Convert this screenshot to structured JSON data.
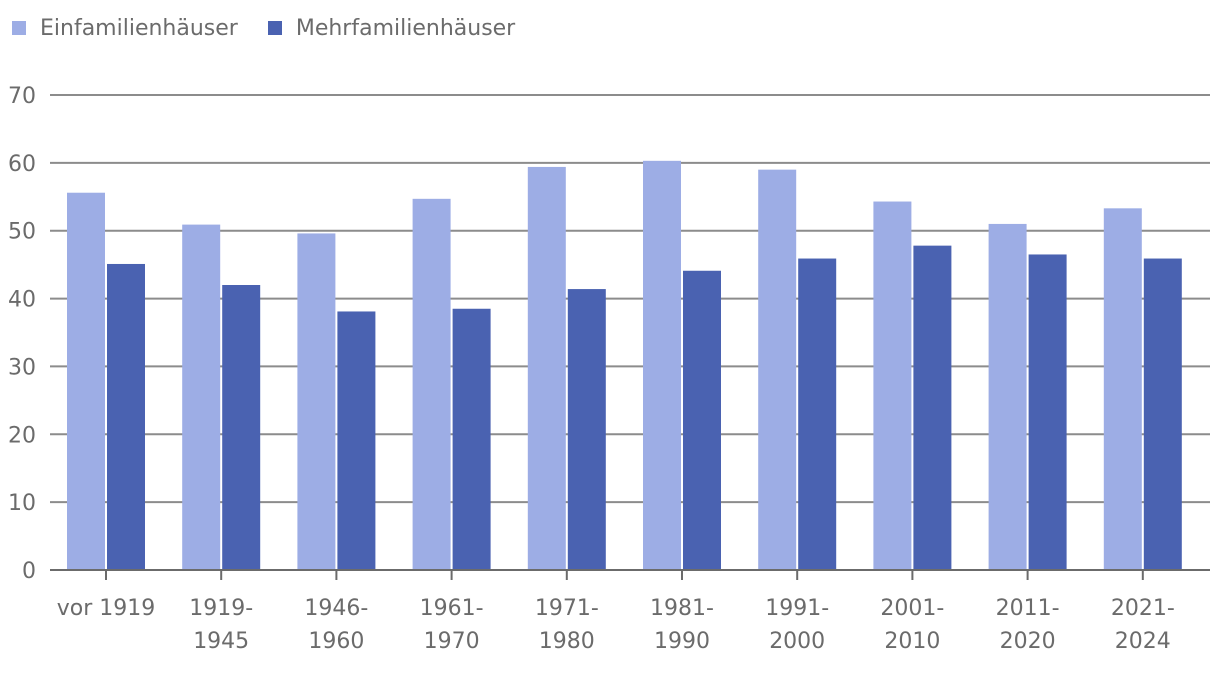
{
  "chart_data": {
    "type": "bar",
    "legend_position": "top-left",
    "grid": true,
    "ylim": [
      0,
      70
    ],
    "yticks": [
      0,
      10,
      20,
      30,
      40,
      50,
      60,
      70
    ],
    "categories": [
      [
        "vor 1919"
      ],
      [
        "1919-",
        "1945"
      ],
      [
        "1946-",
        "1960"
      ],
      [
        "1961-",
        "1970"
      ],
      [
        "1971-",
        "1980"
      ],
      [
        "1981-",
        "1990"
      ],
      [
        "1991-",
        "2000"
      ],
      [
        "2001-",
        "2010"
      ],
      [
        "2011-",
        "2020"
      ],
      [
        "2021-",
        "2024"
      ]
    ],
    "series": [
      {
        "name": "Einfamilienhäuser",
        "color": "#9dade5",
        "values": [
          55.6,
          50.9,
          49.6,
          54.7,
          59.4,
          60.3,
          59.0,
          54.3,
          51.0,
          53.3
        ]
      },
      {
        "name": "Mehrfamilienhäuser",
        "color": "#4a62b1",
        "values": [
          45.1,
          42.0,
          38.1,
          38.5,
          41.4,
          44.1,
          45.9,
          47.8,
          46.5,
          45.9
        ]
      }
    ]
  }
}
